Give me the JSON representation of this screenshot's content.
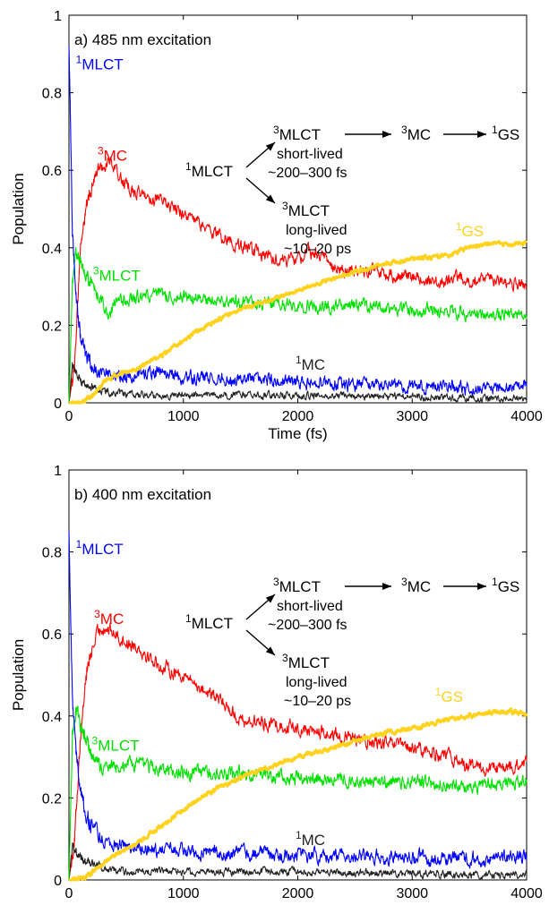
{
  "chart_data": [
    {
      "type": "line",
      "title": "a) 485 nm excitation",
      "xlabel": "Time (fs)",
      "ylabel": "Population",
      "xlim": [
        0,
        4000
      ],
      "ylim": [
        0,
        1
      ],
      "xticks": [
        "0",
        "1000",
        "2000",
        "3000",
        "4000"
      ],
      "yticks": [
        "0",
        "0.2",
        "0.4",
        "0.6",
        "0.8",
        "1"
      ],
      "series": [
        {
          "name": "1MLCT",
          "sup": "1",
          "base": "MLCT",
          "color": "#0000ff",
          "x": [
            0,
            10,
            30,
            60,
            100,
            150,
            200,
            300,
            500,
            800,
            1000,
            1500,
            2000,
            2500,
            3000,
            3500,
            4000
          ],
          "y": [
            0.92,
            0.78,
            0.45,
            0.28,
            0.17,
            0.12,
            0.09,
            0.08,
            0.07,
            0.08,
            0.065,
            0.06,
            0.055,
            0.045,
            0.045,
            0.04,
            0.04
          ]
        },
        {
          "name": "3MC",
          "sup": "3",
          "base": "MC",
          "color": "#ff0000",
          "x": [
            0,
            50,
            100,
            150,
            200,
            250,
            300,
            350,
            400,
            500,
            600,
            800,
            1000,
            1200,
            1400,
            1600,
            1800,
            2000,
            2100,
            2200,
            2400,
            2600,
            2800,
            3000,
            3200,
            3400,
            3600,
            3800,
            4000
          ],
          "y": [
            0.0,
            0.1,
            0.4,
            0.5,
            0.56,
            0.6,
            0.61,
            0.63,
            0.6,
            0.56,
            0.54,
            0.52,
            0.49,
            0.45,
            0.42,
            0.39,
            0.37,
            0.37,
            0.39,
            0.38,
            0.34,
            0.34,
            0.33,
            0.33,
            0.31,
            0.32,
            0.32,
            0.31,
            0.3
          ]
        },
        {
          "name": "3MLCT",
          "sup": "3",
          "base": "MLCT",
          "color": "#00e000",
          "x": [
            0,
            30,
            60,
            100,
            150,
            200,
            300,
            350,
            400,
            600,
            800,
            1000,
            1500,
            2000,
            2500,
            3000,
            3500,
            4000
          ],
          "y": [
            0.0,
            0.3,
            0.39,
            0.36,
            0.33,
            0.3,
            0.26,
            0.21,
            0.26,
            0.27,
            0.28,
            0.27,
            0.26,
            0.25,
            0.25,
            0.24,
            0.23,
            0.23
          ]
        },
        {
          "name": "1GS",
          "sup": "1",
          "base": "GS",
          "color": "#ffd21e",
          "x": [
            0,
            100,
            200,
            300,
            400,
            600,
            800,
            1000,
            1200,
            1500,
            1800,
            2000,
            2300,
            2500,
            2800,
            3000,
            3300,
            3500,
            3700,
            3900,
            4000
          ],
          "y": [
            0.0,
            0.0,
            0.02,
            0.05,
            0.07,
            0.09,
            0.12,
            0.16,
            0.2,
            0.24,
            0.27,
            0.29,
            0.32,
            0.34,
            0.36,
            0.37,
            0.38,
            0.4,
            0.41,
            0.41,
            0.41
          ]
        },
        {
          "name": "1MC",
          "sup": "1",
          "base": "MC",
          "color": "#222222",
          "x": [
            0,
            30,
            60,
            100,
            150,
            200,
            300,
            500,
            1000,
            2000,
            3000,
            4000
          ],
          "y": [
            0.0,
            0.1,
            0.08,
            0.06,
            0.045,
            0.04,
            0.03,
            0.02,
            0.02,
            0.02,
            0.015,
            0.01
          ]
        }
      ],
      "labels": [
        {
          "sup": "1",
          "base": "MLCT",
          "color": "#0000ff",
          "at_x": 60,
          "at_y": 0.86
        },
        {
          "sup": "3",
          "base": "MC",
          "color": "#ff0000",
          "at_x": 250,
          "at_y": 0.625
        },
        {
          "sup": "3",
          "base": "MLCT",
          "color": "#00e000",
          "at_x": 210,
          "at_y": 0.315
        },
        {
          "sup": "1",
          "base": "GS",
          "color": "#ffd21e",
          "at_x": 3380,
          "at_y": 0.43
        },
        {
          "sup": "1",
          "base": "MC",
          "color": "#222222",
          "at_x": 1980,
          "at_y": 0.085
        }
      ]
    },
    {
      "type": "line",
      "title": "b) 400 nm excitation",
      "xlabel": "Time (fs)",
      "ylabel": "Population",
      "xlim": [
        0,
        4000
      ],
      "ylim": [
        0,
        1
      ],
      "xticks": [
        "0",
        "1000",
        "2000",
        "3000",
        "4000"
      ],
      "yticks": [
        "0",
        "0.2",
        "0.4",
        "0.6",
        "0.8",
        "1"
      ],
      "series": [
        {
          "name": "1MLCT",
          "sup": "1",
          "base": "MLCT",
          "color": "#0000ff",
          "x": [
            0,
            10,
            30,
            60,
            100,
            150,
            200,
            300,
            500,
            800,
            1000,
            1500,
            2000,
            2500,
            3000,
            3500,
            4000
          ],
          "y": [
            0.85,
            0.7,
            0.45,
            0.32,
            0.22,
            0.16,
            0.13,
            0.1,
            0.08,
            0.075,
            0.07,
            0.065,
            0.06,
            0.06,
            0.055,
            0.05,
            0.06
          ]
        },
        {
          "name": "3MC",
          "sup": "3",
          "base": "MC",
          "color": "#ff0000",
          "x": [
            0,
            50,
            100,
            150,
            200,
            250,
            300,
            400,
            500,
            600,
            800,
            1000,
            1200,
            1400,
            1500,
            1800,
            2000,
            2200,
            2500,
            2800,
            3000,
            3200,
            3400,
            3600,
            3800,
            4000
          ],
          "y": [
            0.0,
            0.1,
            0.35,
            0.5,
            0.56,
            0.6,
            0.62,
            0.6,
            0.58,
            0.57,
            0.52,
            0.5,
            0.46,
            0.42,
            0.39,
            0.38,
            0.37,
            0.36,
            0.34,
            0.33,
            0.32,
            0.31,
            0.29,
            0.27,
            0.27,
            0.28
          ]
        },
        {
          "name": "3MLCT",
          "sup": "3",
          "base": "MLCT",
          "color": "#00e000",
          "x": [
            0,
            30,
            60,
            100,
            150,
            200,
            300,
            400,
            600,
            800,
            1000,
            1500,
            2000,
            2500,
            3000,
            3500,
            4000
          ],
          "y": [
            0.0,
            0.35,
            0.42,
            0.38,
            0.34,
            0.3,
            0.27,
            0.28,
            0.28,
            0.27,
            0.26,
            0.26,
            0.25,
            0.24,
            0.24,
            0.23,
            0.24
          ]
        },
        {
          "name": "1GS",
          "sup": "1",
          "base": "GS",
          "color": "#ffd21e",
          "x": [
            0,
            100,
            200,
            300,
            400,
            600,
            800,
            1000,
            1200,
            1500,
            1800,
            2000,
            2300,
            2500,
            2800,
            3000,
            3300,
            3500,
            3700,
            3900,
            4000
          ],
          "y": [
            0.0,
            0.0,
            0.02,
            0.04,
            0.06,
            0.09,
            0.13,
            0.17,
            0.21,
            0.25,
            0.28,
            0.3,
            0.32,
            0.34,
            0.36,
            0.37,
            0.39,
            0.4,
            0.41,
            0.41,
            0.4
          ]
        },
        {
          "name": "1MC",
          "sup": "1",
          "base": "MC",
          "color": "#222222",
          "x": [
            0,
            30,
            60,
            100,
            150,
            200,
            300,
            500,
            1000,
            2000,
            3000,
            4000
          ],
          "y": [
            0.0,
            0.09,
            0.07,
            0.055,
            0.045,
            0.04,
            0.03,
            0.02,
            0.02,
            0.02,
            0.015,
            0.012
          ]
        }
      ],
      "labels": [
        {
          "sup": "1",
          "base": "MLCT",
          "color": "#0000ff",
          "at_x": 60,
          "at_y": 0.795
        },
        {
          "sup": "3",
          "base": "MC",
          "color": "#ff0000",
          "at_x": 220,
          "at_y": 0.625
        },
        {
          "sup": "3",
          "base": "MLCT",
          "color": "#00e000",
          "at_x": 200,
          "at_y": 0.315
        },
        {
          "sup": "1",
          "base": "GS",
          "color": "#ffd21e",
          "at_x": 3200,
          "at_y": 0.435
        },
        {
          "sup": "1",
          "base": "MC",
          "color": "#222222",
          "at_x": 1980,
          "at_y": 0.085
        }
      ]
    }
  ],
  "scheme": {
    "start_sup": "1",
    "start_base": "MLCT",
    "upper_sup": "3",
    "upper_base": "MLCT",
    "upper_line1": "short-lived",
    "upper_line2": "~200–300 fs",
    "mid_sup": "3",
    "mid_base": "MC",
    "end_sup": "1",
    "end_base": "GS",
    "lower_sup": "3",
    "lower_base": "MLCT",
    "lower_line1": "long-lived",
    "lower_line2": "~10–20 ps"
  }
}
